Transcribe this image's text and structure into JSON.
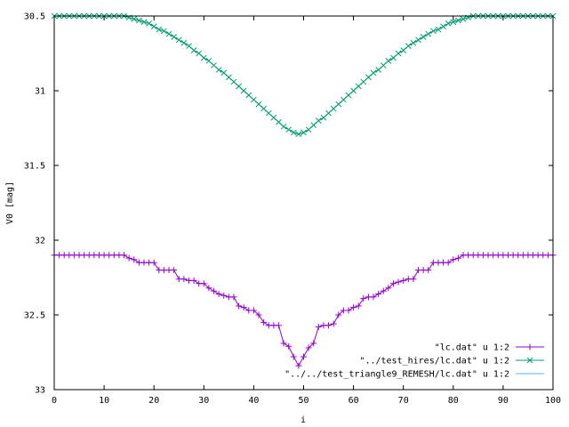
{
  "chart_data": {
    "type": "line",
    "xlabel": "i",
    "ylabel": "V0 [mag]",
    "xlim": [
      0,
      100
    ],
    "ylim": [
      30.5,
      33
    ],
    "y_inverted": true,
    "grid": false,
    "legend_position": "bottom-right",
    "x_ticks": [
      0,
      10,
      20,
      30,
      40,
      50,
      60,
      70,
      80,
      90,
      100
    ],
    "x_tick_labels": [
      "0",
      "10",
      "20",
      "30",
      "40",
      "50",
      "60",
      "70",
      "80",
      "90",
      "100"
    ],
    "y_ticks": [
      30.5,
      31,
      31.5,
      32,
      32.5,
      33
    ],
    "y_tick_labels": [
      "30.5",
      "31",
      "31.5",
      "32",
      "32.5",
      "33"
    ],
    "series": [
      {
        "name": "\"lc.dat\" u 1:2",
        "color": "#9400d3",
        "marker": "plus",
        "x": [
          0,
          1,
          2,
          3,
          4,
          5,
          6,
          7,
          8,
          9,
          10,
          11,
          12,
          13,
          14,
          15,
          16,
          17,
          18,
          19,
          20,
          21,
          22,
          23,
          24,
          25,
          26,
          27,
          28,
          29,
          30,
          31,
          32,
          33,
          34,
          35,
          36,
          37,
          38,
          39,
          40,
          41,
          42,
          43,
          44,
          45,
          46,
          47,
          48,
          49,
          50,
          51,
          52,
          53,
          54,
          55,
          56,
          57,
          58,
          59,
          60,
          61,
          62,
          63,
          64,
          65,
          66,
          67,
          68,
          69,
          70,
          71,
          72,
          73,
          74,
          75,
          76,
          77,
          78,
          79,
          80,
          81,
          82,
          83,
          84,
          85,
          86,
          87,
          88,
          89,
          90,
          91,
          92,
          93,
          94,
          95,
          96,
          97,
          98,
          99,
          100
        ],
        "y": [
          32.1,
          32.1,
          32.1,
          32.1,
          32.1,
          32.1,
          32.1,
          32.1,
          32.1,
          32.1,
          32.1,
          32.1,
          32.1,
          32.1,
          32.1,
          32.12,
          32.13,
          32.15,
          32.15,
          32.15,
          32.15,
          32.2,
          32.2,
          32.2,
          32.2,
          32.26,
          32.26,
          32.27,
          32.27,
          32.29,
          32.29,
          32.32,
          32.34,
          32.36,
          32.37,
          32.38,
          32.38,
          32.44,
          32.45,
          32.47,
          32.47,
          32.5,
          32.55,
          32.57,
          32.57,
          32.57,
          32.69,
          32.71,
          32.78,
          32.84,
          32.78,
          32.72,
          32.69,
          32.58,
          32.57,
          32.57,
          32.56,
          32.5,
          32.47,
          32.47,
          32.45,
          32.44,
          32.39,
          32.38,
          32.38,
          32.36,
          32.34,
          32.32,
          32.29,
          32.28,
          32.27,
          32.26,
          32.26,
          32.2,
          32.2,
          32.2,
          32.15,
          32.15,
          32.15,
          32.15,
          32.13,
          32.12,
          32.1,
          32.1,
          32.1,
          32.1,
          32.1,
          32.1,
          32.1,
          32.1,
          32.1,
          32.1,
          32.1,
          32.1,
          32.1,
          32.1,
          32.1,
          32.1,
          32.1,
          32.1,
          32.1
        ]
      },
      {
        "name": "\"../test_hires/lc.dat\" u 1:2",
        "color": "#009e73",
        "marker": "x",
        "x": [
          0,
          1,
          2,
          3,
          4,
          5,
          6,
          7,
          8,
          9,
          10,
          11,
          12,
          13,
          14,
          15,
          16,
          17,
          18,
          19,
          20,
          21,
          22,
          23,
          24,
          25,
          26,
          27,
          28,
          29,
          30,
          31,
          32,
          33,
          34,
          35,
          36,
          37,
          38,
          39,
          40,
          41,
          42,
          43,
          44,
          45,
          46,
          47,
          48,
          49,
          50,
          51,
          52,
          53,
          54,
          55,
          56,
          57,
          58,
          59,
          60,
          61,
          62,
          63,
          64,
          65,
          66,
          67,
          68,
          69,
          70,
          71,
          72,
          73,
          74,
          75,
          76,
          77,
          78,
          79,
          80,
          81,
          82,
          83,
          84,
          85,
          86,
          87,
          88,
          89,
          90,
          91,
          92,
          93,
          94,
          95,
          96,
          97,
          98,
          99,
          100
        ],
        "y": [
          30.5,
          30.5,
          30.5,
          30.5,
          30.5,
          30.5,
          30.5,
          30.5,
          30.5,
          30.5,
          30.5,
          30.5,
          30.5,
          30.5,
          30.5,
          30.51,
          30.52,
          30.53,
          30.54,
          30.55,
          30.57,
          30.59,
          30.6,
          30.62,
          30.64,
          30.66,
          30.68,
          30.7,
          30.73,
          30.75,
          30.78,
          30.8,
          30.83,
          30.86,
          30.88,
          30.91,
          30.94,
          30.97,
          31,
          31.03,
          31.06,
          31.09,
          31.12,
          31.15,
          31.18,
          31.21,
          31.24,
          31.26,
          31.28,
          31.29,
          31.28,
          31.26,
          31.23,
          31.2,
          31.18,
          31.15,
          31.12,
          31.09,
          31.06,
          31.03,
          31,
          30.97,
          30.94,
          30.91,
          30.88,
          30.86,
          30.83,
          30.8,
          30.78,
          30.75,
          30.73,
          30.7,
          30.68,
          30.66,
          30.64,
          30.62,
          30.6,
          30.59,
          30.57,
          30.55,
          30.54,
          30.53,
          30.52,
          30.51,
          30.5,
          30.5,
          30.5,
          30.5,
          30.5,
          30.5,
          30.5,
          30.5,
          30.5,
          30.5,
          30.5,
          30.5,
          30.5,
          30.5,
          30.5,
          30.5,
          30.5
        ]
      },
      {
        "name": "\"../../test_triangle9_REMESH/lc.dat\" u 1:2",
        "color": "#56b4e9",
        "marker": "none",
        "x": [],
        "y": []
      }
    ]
  }
}
